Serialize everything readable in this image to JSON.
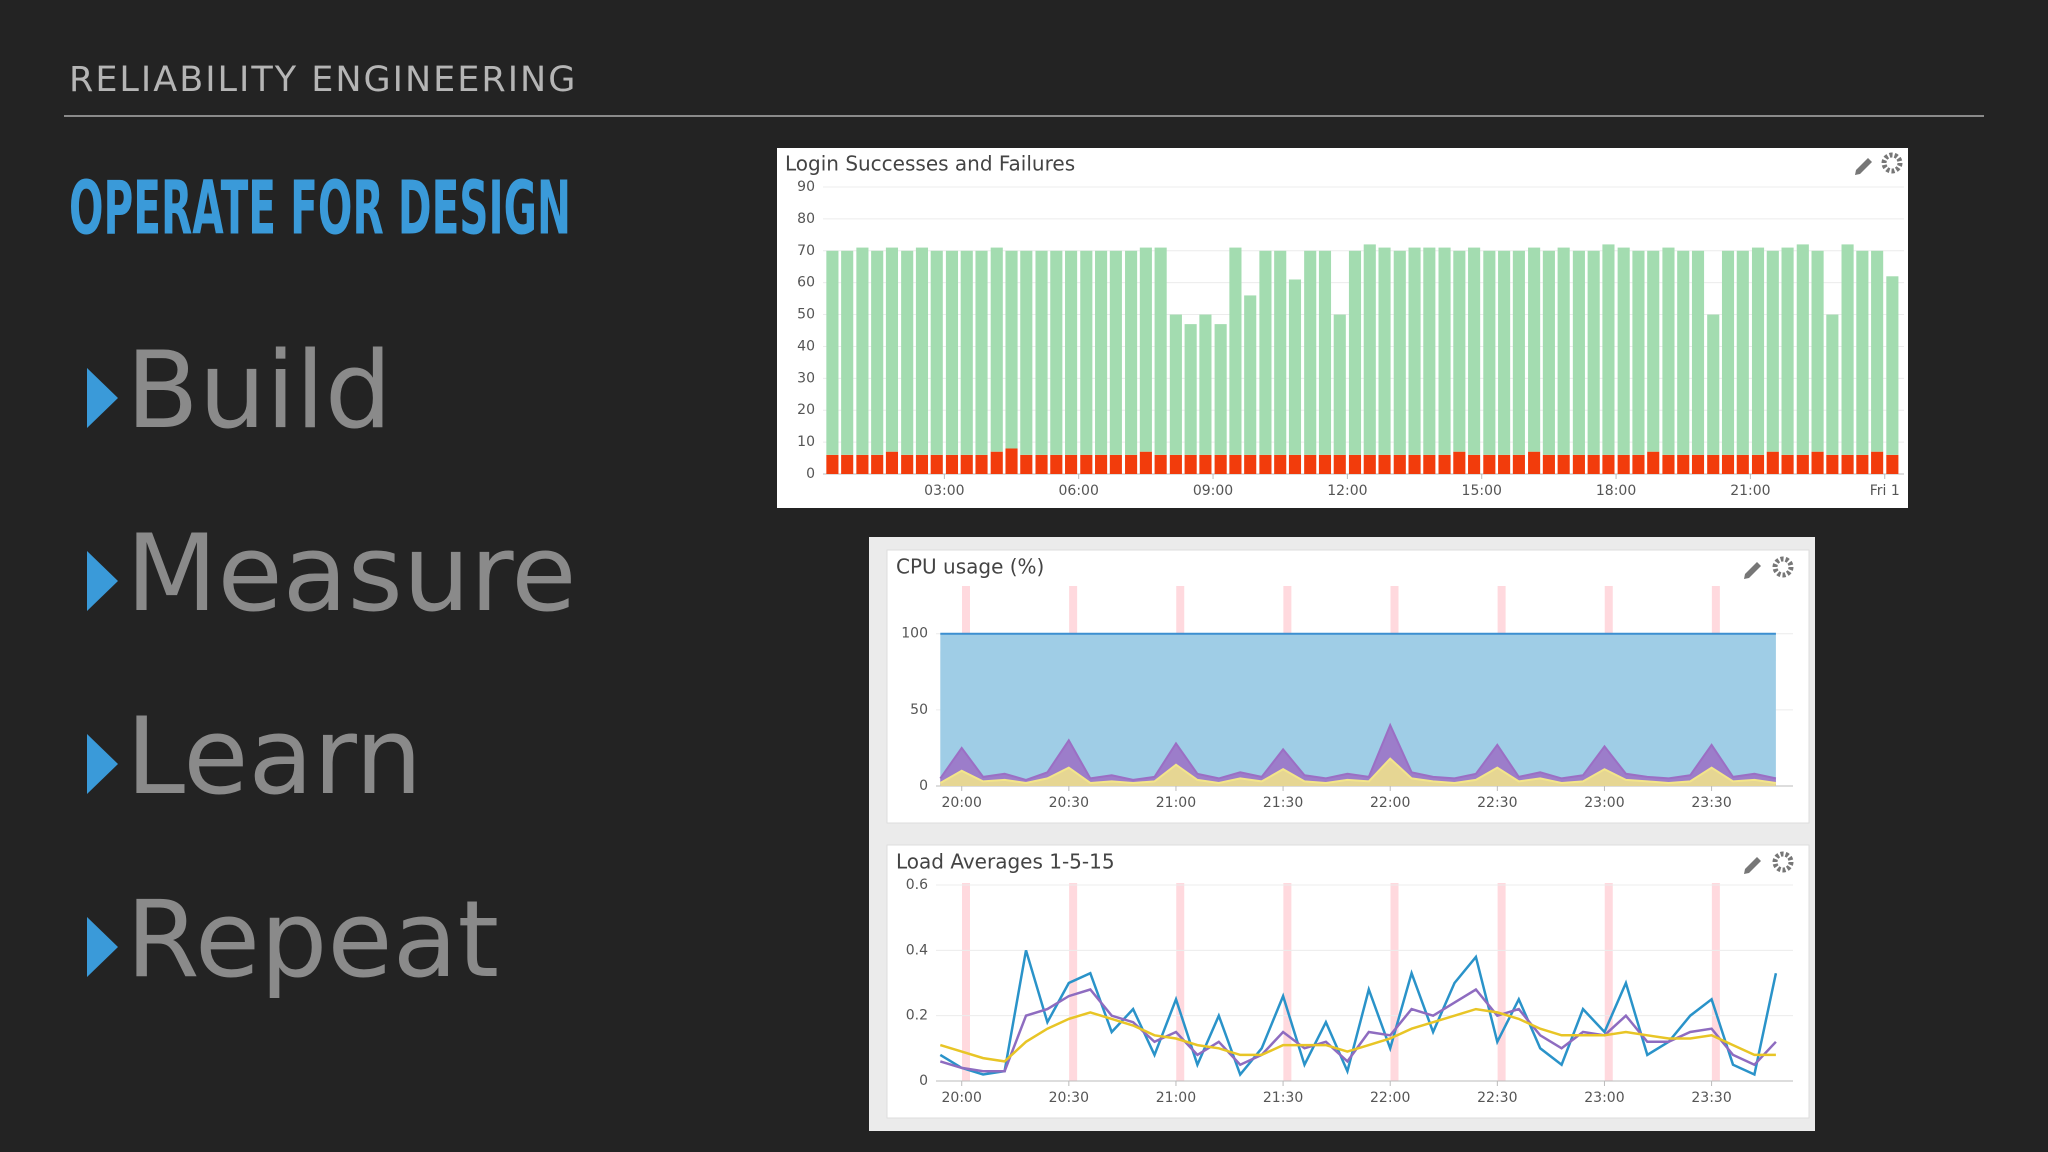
{
  "header": "RELIABILITY ENGINEERING",
  "title": "OPERATE FOR DESIGN",
  "bullets": [
    "Build",
    "Measure",
    "Learn",
    "Repeat"
  ],
  "chart_data": [
    {
      "type": "bar",
      "title": "Login Successes and Failures",
      "stacked": true,
      "grid": true,
      "x": [
        0.5,
        0.83,
        1.17,
        1.5,
        1.83,
        2.17,
        2.5,
        2.83,
        3.17,
        3.5,
        3.83,
        4.17,
        4.5,
        4.83,
        5.17,
        5.5,
        5.83,
        6.17,
        6.5,
        6.83,
        7.17,
        7.5,
        7.83,
        8.17,
        8.5,
        8.83,
        9.17,
        9.5,
        9.83,
        10.17,
        10.5,
        10.83,
        11.17,
        11.5,
        11.83,
        12.17,
        12.5,
        12.83,
        13.17,
        13.5,
        13.83,
        14.17,
        14.5,
        14.83,
        15.17,
        15.5,
        15.83,
        16.17,
        16.5,
        16.83,
        17.17,
        17.5,
        17.83,
        18.17,
        18.5,
        18.83,
        19.17,
        19.5,
        19.83,
        20.17,
        20.5,
        20.83,
        21.17,
        21.5,
        21.83,
        22.17,
        22.5,
        22.83,
        23.17,
        23.5,
        23.83,
        24.17
      ],
      "series": [
        {
          "color": "#f23c0c",
          "values": [
            6,
            6,
            6,
            6,
            7,
            6,
            6,
            6,
            6,
            6,
            6,
            7,
            8,
            6,
            6,
            6,
            6,
            6,
            6,
            6,
            6,
            7,
            6,
            6,
            6,
            6,
            6,
            6,
            6,
            6,
            6,
            6,
            6,
            6,
            6,
            6,
            6,
            6,
            6,
            6,
            6,
            6,
            7,
            6,
            6,
            6,
            6,
            7,
            6,
            6,
            6,
            6,
            6,
            6,
            6,
            7,
            6,
            6,
            6,
            6,
            6,
            6,
            6,
            7,
            6,
            6,
            7,
            6,
            6,
            6,
            7,
            6
          ]
        },
        {
          "color": "#a3dcb0",
          "values": [
            64,
            64,
            65,
            64,
            64,
            64,
            65,
            64,
            64,
            64,
            64,
            64,
            62,
            64,
            64,
            64,
            64,
            64,
            64,
            64,
            64,
            64,
            65,
            44,
            41,
            44,
            41,
            65,
            50,
            64,
            64,
            55,
            64,
            64,
            44,
            64,
            66,
            65,
            64,
            65,
            65,
            65,
            63,
            65,
            64,
            64,
            64,
            64,
            64,
            65,
            64,
            64,
            66,
            65,
            64,
            63,
            65,
            64,
            64,
            44,
            64,
            64,
            65,
            63,
            65,
            66,
            63,
            44,
            66,
            64,
            63,
            56
          ]
        }
      ],
      "xlim": [
        0.29,
        24.43
      ],
      "xticks": [
        {
          "value": 3,
          "label": "03:00"
        },
        {
          "value": 6,
          "label": "06:00"
        },
        {
          "value": 9,
          "label": "09:00"
        },
        {
          "value": 12,
          "label": "12:00"
        },
        {
          "value": 15,
          "label": "15:00"
        },
        {
          "value": 18,
          "label": "18:00"
        },
        {
          "value": 21,
          "label": "21:00"
        },
        {
          "value": 24,
          "label": "Fri 1"
        }
      ],
      "ylim": [
        0,
        90
      ],
      "yticks": [
        0,
        10,
        20,
        30,
        40,
        50,
        60,
        70,
        80,
        90
      ]
    },
    {
      "type": "area",
      "title": "CPU usage (%)",
      "grid": true,
      "x": [
        19.9,
        20.0,
        20.1,
        20.2,
        20.3,
        20.4,
        20.5,
        20.6,
        20.7,
        20.8,
        20.9,
        21.0,
        21.1,
        21.2,
        21.3,
        21.4,
        21.5,
        21.6,
        21.7,
        21.8,
        21.9,
        22.0,
        22.1,
        22.2,
        22.3,
        22.4,
        22.5,
        22.6,
        22.7,
        22.8,
        22.9,
        23.0,
        23.1,
        23.2,
        23.3,
        23.4,
        23.5,
        23.6,
        23.7,
        23.8
      ],
      "series": [
        {
          "color": "#3c8fd0",
          "values": [
            100,
            100,
            100,
            100,
            100,
            100,
            100,
            100,
            100,
            100,
            100,
            100,
            100,
            100,
            100,
            100,
            100,
            100,
            100,
            100,
            100,
            100,
            100,
            100,
            100,
            100,
            100,
            100,
            100,
            100,
            100,
            100,
            100,
            100,
            100,
            100,
            100,
            100,
            100,
            100
          ]
        },
        {
          "color": "#9b6fc4",
          "values": [
            5,
            25,
            6,
            8,
            4,
            9,
            30,
            5,
            7,
            4,
            6,
            28,
            8,
            5,
            9,
            6,
            24,
            7,
            5,
            8,
            6,
            40,
            9,
            6,
            5,
            8,
            27,
            6,
            9,
            5,
            7,
            26,
            8,
            6,
            5,
            7,
            27,
            6,
            8,
            5
          ]
        },
        {
          "color": "#f3e58a",
          "values": [
            2,
            10,
            3,
            4,
            2,
            5,
            12,
            2,
            3,
            2,
            3,
            14,
            4,
            2,
            5,
            3,
            11,
            3,
            2,
            4,
            3,
            18,
            5,
            3,
            2,
            4,
            12,
            3,
            5,
            2,
            3,
            11,
            4,
            3,
            2,
            3,
            12,
            3,
            4,
            2
          ]
        }
      ],
      "events": [
        20.02,
        20.52,
        21.02,
        21.52,
        22.02,
        22.52,
        23.02,
        23.52
      ],
      "xlim": [
        19.88,
        23.88
      ],
      "xticks": [
        {
          "value": 20,
          "label": "20:00"
        },
        {
          "value": 20.5,
          "label": "20:30"
        },
        {
          "value": 21,
          "label": "21:00"
        },
        {
          "value": 21.5,
          "label": "21:30"
        },
        {
          "value": 22,
          "label": "22:00"
        },
        {
          "value": 22.5,
          "label": "22:30"
        },
        {
          "value": 23,
          "label": "23:00"
        },
        {
          "value": 23.5,
          "label": "23:30"
        }
      ],
      "ylim": [
        0,
        130
      ],
      "yticks": [
        0,
        50,
        100
      ]
    },
    {
      "type": "line",
      "title": "Load Averages 1-5-15",
      "grid": true,
      "x": [
        19.9,
        20.0,
        20.1,
        20.2,
        20.3,
        20.4,
        20.5,
        20.6,
        20.7,
        20.8,
        20.9,
        21.0,
        21.1,
        21.2,
        21.3,
        21.4,
        21.5,
        21.6,
        21.7,
        21.8,
        21.9,
        22.0,
        22.1,
        22.2,
        22.3,
        22.4,
        22.5,
        22.6,
        22.7,
        22.8,
        22.9,
        23.0,
        23.1,
        23.2,
        23.3,
        23.4,
        23.5,
        23.6,
        23.7,
        23.8
      ],
      "series": [
        {
          "color": "#2a93c9",
          "values": [
            0.08,
            0.04,
            0.02,
            0.03,
            0.4,
            0.18,
            0.3,
            0.33,
            0.15,
            0.22,
            0.08,
            0.25,
            0.05,
            0.2,
            0.02,
            0.1,
            0.26,
            0.05,
            0.18,
            0.03,
            0.28,
            0.1,
            0.33,
            0.15,
            0.3,
            0.38,
            0.12,
            0.25,
            0.1,
            0.05,
            0.22,
            0.15,
            0.3,
            0.08,
            0.12,
            0.2,
            0.25,
            0.05,
            0.02,
            0.33
          ]
        },
        {
          "color": "#8e6cc0",
          "values": [
            0.06,
            0.04,
            0.03,
            0.03,
            0.2,
            0.22,
            0.26,
            0.28,
            0.2,
            0.18,
            0.12,
            0.15,
            0.08,
            0.12,
            0.05,
            0.08,
            0.15,
            0.1,
            0.12,
            0.06,
            0.15,
            0.14,
            0.22,
            0.2,
            0.24,
            0.28,
            0.2,
            0.22,
            0.14,
            0.1,
            0.15,
            0.14,
            0.2,
            0.12,
            0.12,
            0.15,
            0.16,
            0.08,
            0.05,
            0.12
          ]
        },
        {
          "color": "#e8c526",
          "values": [
            0.11,
            0.09,
            0.07,
            0.06,
            0.12,
            0.16,
            0.19,
            0.21,
            0.19,
            0.17,
            0.14,
            0.13,
            0.11,
            0.1,
            0.08,
            0.08,
            0.11,
            0.11,
            0.11,
            0.09,
            0.11,
            0.13,
            0.16,
            0.18,
            0.2,
            0.22,
            0.21,
            0.19,
            0.16,
            0.14,
            0.14,
            0.14,
            0.15,
            0.14,
            0.13,
            0.13,
            0.14,
            0.11,
            0.08,
            0.08
          ]
        }
      ],
      "events": [
        20.02,
        20.52,
        21.02,
        21.52,
        22.02,
        22.52,
        23.02,
        23.52
      ],
      "xlim": [
        19.88,
        23.88
      ],
      "xticks": [
        {
          "value": 20,
          "label": "20:00"
        },
        {
          "value": 20.5,
          "label": "20:30"
        },
        {
          "value": 21,
          "label": "21:00"
        },
        {
          "value": 21.5,
          "label": "21:30"
        },
        {
          "value": 22,
          "label": "22:00"
        },
        {
          "value": 22.5,
          "label": "22:30"
        },
        {
          "value": 23,
          "label": "23:00"
        },
        {
          "value": 23.5,
          "label": "23:30"
        }
      ],
      "ylim": [
        0,
        0.6
      ],
      "yticks": [
        0,
        0.2,
        0.4,
        0.6
      ]
    }
  ]
}
